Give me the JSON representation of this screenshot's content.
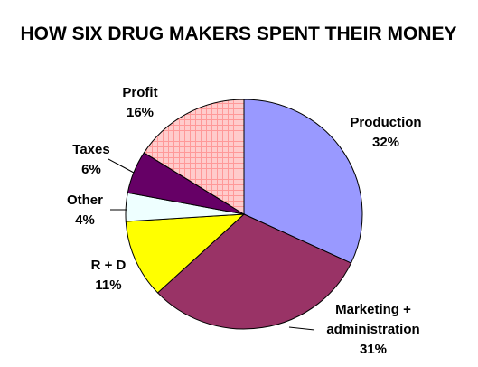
{
  "chart_data": {
    "type": "pie",
    "title": "HOW SIX DRUG MAKERS SPENT THEIR MONEY",
    "slices": [
      {
        "label": "Production",
        "value": 32,
        "pct_label": "32%",
        "color": "#9999ff",
        "pattern": "solid"
      },
      {
        "label": "Marketing + administration",
        "label_lines": [
          "Marketing +",
          "administration"
        ],
        "value": 31,
        "pct_label": "31%",
        "color": "#993366",
        "pattern": "solid"
      },
      {
        "label": "R + D",
        "value": 11,
        "pct_label": "11%",
        "color": "#ffff00",
        "pattern": "solid"
      },
      {
        "label": "Other",
        "value": 4,
        "pct_label": "4%",
        "color": "#eeffff",
        "pattern": "solid"
      },
      {
        "label": "Taxes",
        "value": 6,
        "pct_label": "6%",
        "color": "#660066",
        "pattern": "solid"
      },
      {
        "label": "Profit",
        "value": 16,
        "pct_label": "16%",
        "color": "#ffcccc",
        "pattern": "grid",
        "pattern_color": "#ff9999"
      }
    ],
    "start_at": "12 o'clock",
    "direction": "clockwise",
    "legend": "none"
  }
}
